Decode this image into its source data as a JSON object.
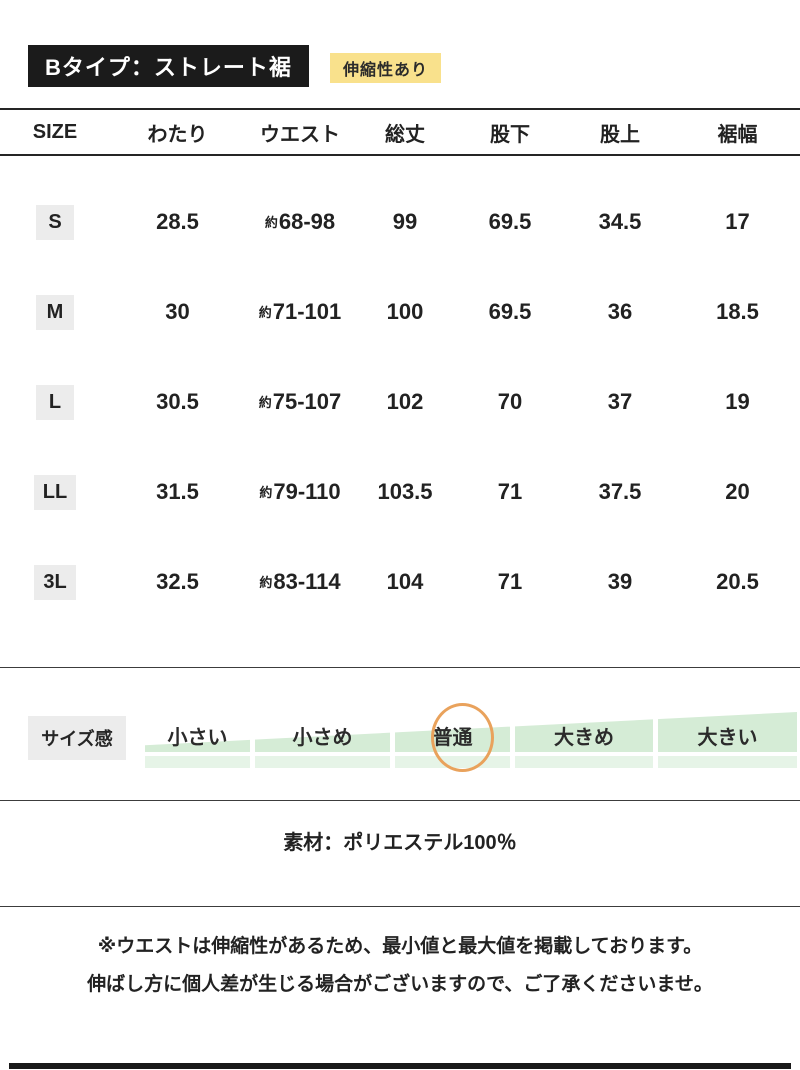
{
  "header": {
    "title": "Bタイプ：ストレート裾",
    "badge": "伸縮性あり"
  },
  "table": {
    "columns": [
      "SIZE",
      "わたり",
      "ウエスト",
      "総丈",
      "股下",
      "股上",
      "裾幅"
    ],
    "approx_prefix": "約",
    "rows": [
      {
        "size": "S",
        "watari": "28.5",
        "waist": "68-98",
        "total": "99",
        "inseam": "69.5",
        "rise": "34.5",
        "hem": "17"
      },
      {
        "size": "M",
        "watari": "30",
        "waist": "71-101",
        "total": "100",
        "inseam": "69.5",
        "rise": "36",
        "hem": "18.5"
      },
      {
        "size": "L",
        "watari": "30.5",
        "waist": "75-107",
        "total": "102",
        "inseam": "70",
        "rise": "37",
        "hem": "19"
      },
      {
        "size": "LL",
        "watari": "31.5",
        "waist": "79-110",
        "total": "103.5",
        "inseam": "71",
        "rise": "37.5",
        "hem": "20"
      },
      {
        "size": "3L",
        "watari": "32.5",
        "waist": "83-114",
        "total": "104",
        "inseam": "71",
        "rise": "39",
        "hem": "20.5"
      }
    ]
  },
  "size_feel": {
    "label": "サイズ感",
    "options": [
      "小さい",
      "小さめ",
      "普通",
      "大きめ",
      "大きい"
    ],
    "selected": "普通"
  },
  "material": {
    "text": "素材：ポリエステル100％"
  },
  "notes": {
    "line1": "※ウエストは伸縮性があるため、最小値と最大値を掲載しております。",
    "line2": "伸ばし方に個人差が生じる場合がございますので、ご了承くださいませ。"
  },
  "colors": {
    "ink": "#1b1b1b",
    "accent_yellow": "#F9E18C",
    "chip_gray": "#ececec",
    "scale_green": "#d5ecd6",
    "scale_green_light": "#e6f4e7",
    "highlight_orange": "#E9A25C"
  }
}
